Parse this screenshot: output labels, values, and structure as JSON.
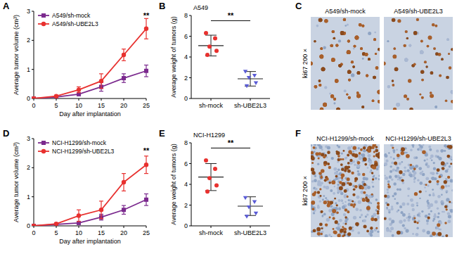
{
  "chart_data": [
    {
      "panel": "A",
      "type": "line",
      "x": [
        0,
        5,
        10,
        15,
        20,
        25
      ],
      "xlim": [
        0,
        25
      ],
      "xticks": [
        0,
        5,
        10,
        15,
        20,
        25
      ],
      "ylim": [
        0,
        3
      ],
      "yticks": [
        0,
        1,
        2,
        3
      ],
      "x_label": "Day after implantation",
      "y_label": "Average tumor volume (cm³)",
      "legend": "upper left",
      "series": [
        {
          "name": "A549/sh-mock",
          "color": "#7b2a8e",
          "marker": "square",
          "values": [
            0,
            0.05,
            0.15,
            0.4,
            0.7,
            0.95
          ],
          "errors": [
            0,
            0.02,
            0.05,
            0.15,
            0.15,
            0.2
          ]
        },
        {
          "name": "A549/sh-UBE2L3",
          "color": "#e8312f",
          "marker": "circle",
          "values": [
            0,
            0.08,
            0.3,
            0.6,
            1.5,
            2.4
          ],
          "errors": [
            0,
            0.03,
            0.1,
            0.25,
            0.2,
            0.35
          ]
        }
      ],
      "annotations": [
        {
          "text": "**",
          "x": 25,
          "y": 2.85
        }
      ]
    },
    {
      "panel": "B",
      "type": "dot",
      "title": "A549",
      "categories": [
        "sh-mock",
        "sh-UBE2L3"
      ],
      "ylim": [
        0,
        8
      ],
      "yticks": [
        0,
        2,
        4,
        6,
        8
      ],
      "y_label": "Average weight of tumors (g)",
      "colors": [
        "#e8312f",
        "#5a5bd6"
      ],
      "points": [
        [
          6.3,
          5.8,
          5.0,
          4.6,
          4.2
        ],
        [
          2.6,
          2.2,
          2.0,
          1.5,
          1.2
        ]
      ],
      "means": [
        5.1,
        1.9
      ],
      "sds": [
        1.0,
        0.7
      ],
      "annotations": [
        {
          "text": "**",
          "y": 7.5
        }
      ]
    },
    {
      "panel": "C",
      "type": "image",
      "titles": [
        "A549/sh-mock",
        "A549/sh-UBE2L3"
      ],
      "side_label": "ki67  200 ×"
    },
    {
      "panel": "D",
      "type": "line",
      "x": [
        0,
        5,
        10,
        15,
        20,
        25
      ],
      "xlim": [
        0,
        25
      ],
      "xticks": [
        0,
        5,
        10,
        15,
        20,
        25
      ],
      "ylim": [
        0,
        3
      ],
      "yticks": [
        0,
        1,
        2,
        3
      ],
      "x_label": "Day after implantation",
      "y_label": "Average tumor volume (cm³)",
      "legend": "upper left",
      "series": [
        {
          "name": "NCI-H1299/sh-mock",
          "color": "#7b2a8e",
          "marker": "square",
          "values": [
            0,
            0.05,
            0.1,
            0.3,
            0.55,
            0.9
          ],
          "errors": [
            0,
            0.02,
            0.05,
            0.1,
            0.15,
            0.2
          ]
        },
        {
          "name": "NCI-H1299/sh-UBE2L3",
          "color": "#e8312f",
          "marker": "circle",
          "values": [
            0,
            0.07,
            0.35,
            0.55,
            1.5,
            2.1
          ],
          "errors": [
            0,
            0.03,
            0.2,
            0.3,
            0.3,
            0.3
          ]
        }
      ],
      "annotations": [
        {
          "text": "**",
          "x": 25,
          "y": 2.6
        }
      ]
    },
    {
      "panel": "E",
      "type": "dot",
      "title": "NCI-H1299",
      "categories": [
        "sh-mock",
        "sh-UBE2L3"
      ],
      "ylim": [
        0,
        8
      ],
      "yticks": [
        0,
        2,
        4,
        6,
        8
      ],
      "y_label": "Average weight of tumors (g)",
      "colors": [
        "#e8312f",
        "#5a5bd6"
      ],
      "points": [
        [
          6.3,
          5.5,
          4.6,
          3.9,
          3.3
        ],
        [
          2.7,
          2.3,
          1.8,
          1.2,
          0.9
        ]
      ],
      "means": [
        4.7,
        1.9
      ],
      "sds": [
        1.3,
        0.9
      ],
      "annotations": [
        {
          "text": "**",
          "y": 7.5
        }
      ]
    },
    {
      "panel": "F",
      "type": "image",
      "titles": [
        "NCI-H1299/sh-mock",
        "NCI-H1299/sh-UBE2L3"
      ],
      "side_label": "ki67  200 ×"
    }
  ]
}
